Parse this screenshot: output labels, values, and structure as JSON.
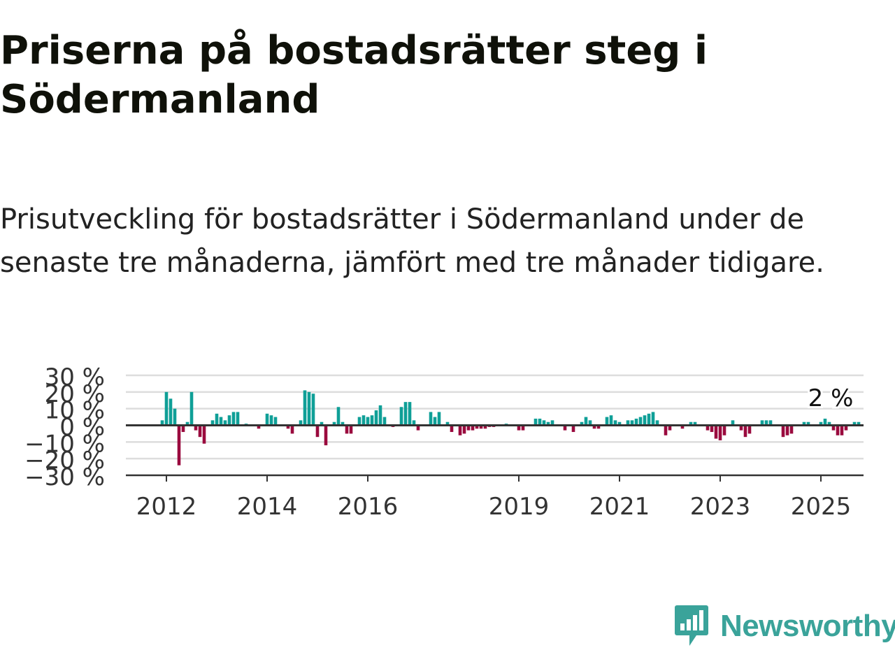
{
  "title": "Priserna på bostadsrätter steg i Södermanland",
  "subtitle": "Prisutveckling för bostadsrätter i Södermanland under de senaste tre månaderna, jämfört med tre månader tidigare.",
  "logo": {
    "name": "Newsworthy",
    "icon": "newsworthy-chart-icon"
  },
  "colors": {
    "positive": "#0f9f97",
    "negative": "#9a0a3e",
    "grid": "#dddddd",
    "zero_line": "#333333",
    "axis": "#333333",
    "brand": "#3aa39a"
  },
  "chart_data": {
    "type": "bar",
    "title": "",
    "xlabel": "",
    "ylabel": "",
    "ylim": [
      -30,
      30
    ],
    "yticks": [
      30,
      20,
      10,
      0,
      -10,
      -20,
      -30
    ],
    "ytick_labels": [
      "30 %",
      "20 %",
      "10 %",
      "0 %",
      "−10 %",
      "−20 %",
      "−30 %"
    ],
    "grid": true,
    "legend": "none",
    "x_start": "2011-12",
    "xticks": [
      {
        "label": "2012",
        "date": "2012-01"
      },
      {
        "label": "2014",
        "date": "2014-01"
      },
      {
        "label": "2016",
        "date": "2016-01"
      },
      {
        "label": "2019",
        "date": "2019-01"
      },
      {
        "label": "2021",
        "date": "2021-01"
      },
      {
        "label": "2023",
        "date": "2023-01"
      },
      {
        "label": "2025",
        "date": "2025-01"
      }
    ],
    "annotation": {
      "text": "2 %",
      "date": "2025-03",
      "value": 2
    },
    "values": [
      3,
      20,
      16,
      10,
      -24,
      -4,
      2,
      20,
      -3,
      -7,
      -11,
      0,
      3,
      7,
      5,
      3,
      6,
      8,
      8,
      0,
      1,
      0,
      0,
      -2,
      0,
      7,
      6,
      5,
      0,
      0,
      -2,
      -5,
      0,
      3,
      21,
      20,
      19,
      -7,
      2,
      -12,
      0,
      2,
      11,
      2,
      -5,
      -5,
      0,
      5,
      6,
      5,
      6,
      9,
      12,
      5,
      0,
      -1,
      0,
      11,
      14,
      14,
      3,
      -3,
      0,
      0,
      8,
      5,
      8,
      0,
      2,
      -4,
      0,
      -6,
      -5,
      -3,
      -3,
      -2,
      -2,
      -2,
      -1,
      -1,
      0,
      0,
      1,
      0,
      0,
      -3,
      -3,
      0,
      0,
      4,
      4,
      3,
      2,
      3,
      0,
      0,
      -3,
      0,
      -4,
      0,
      2,
      5,
      3,
      -2,
      -2,
      0,
      5,
      6,
      3,
      2,
      0,
      3,
      3,
      4,
      5,
      6,
      7,
      8,
      3,
      0,
      -6,
      -3,
      0,
      0,
      -2,
      0,
      2,
      2,
      0,
      0,
      -3,
      -4,
      -8,
      -9,
      -6,
      0,
      3,
      0,
      -3,
      -7,
      -5,
      0,
      0,
      3,
      3,
      3,
      0,
      0,
      -7,
      -6,
      -5,
      0,
      0,
      2,
      2,
      0,
      0,
      2,
      4,
      2,
      -3,
      -6,
      -6,
      -3,
      0,
      2,
      2
    ]
  }
}
